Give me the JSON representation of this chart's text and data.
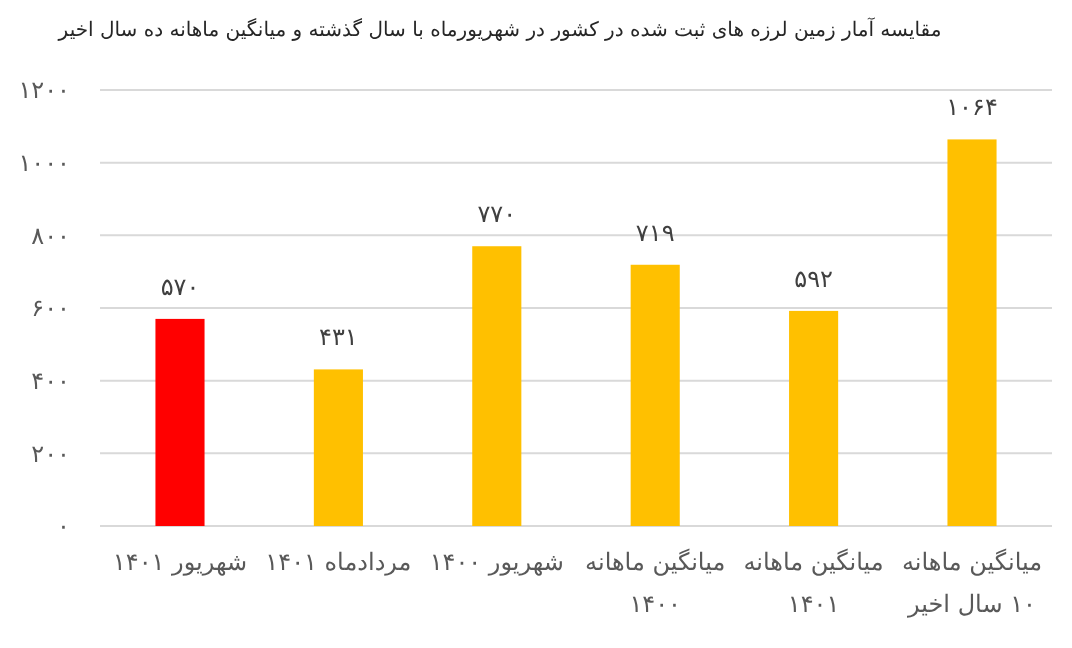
{
  "chart_data": {
    "type": "bar",
    "title": "مقایسه آمار زمین لرزه های ثبت شده در کشور در شهریورماه با سال گذشته و میانگین ماهانه ده سال اخیر",
    "categories": [
      "شهریور ۱۴۰۱",
      "مردادماه ۱۴۰۱",
      "شهریور ۱۴۰۰",
      "میانگین ماهانه\n۱۴۰۰",
      "میانگین ماهانه\n۱۴۰۱",
      "میانگین ماهانه\n۱۰ سال اخیر"
    ],
    "values": [
      570,
      431,
      770,
      719,
      592,
      1064
    ],
    "colors": [
      "#ff0000",
      "#ffc000",
      "#ffc000",
      "#ffc000",
      "#ffc000",
      "#ffc000"
    ],
    "value_labels": [
      "۵۷۰",
      "۴۳۱",
      "۷۷۰",
      "۷۱۹",
      "۵۹۲",
      "۱۰۶۴"
    ],
    "ylim": [
      0,
      1200
    ],
    "yticks": [
      {
        "value": 0,
        "label": "۰"
      },
      {
        "value": 200,
        "label": "۲۰۰"
      },
      {
        "value": 400,
        "label": "۴۰۰"
      },
      {
        "value": 600,
        "label": "۶۰۰"
      },
      {
        "value": 800,
        "label": "۸۰۰"
      },
      {
        "value": 1000,
        "label": "۱۰۰۰"
      },
      {
        "value": 1200,
        "label": "۱۲۰۰"
      }
    ],
    "grid": "y"
  }
}
